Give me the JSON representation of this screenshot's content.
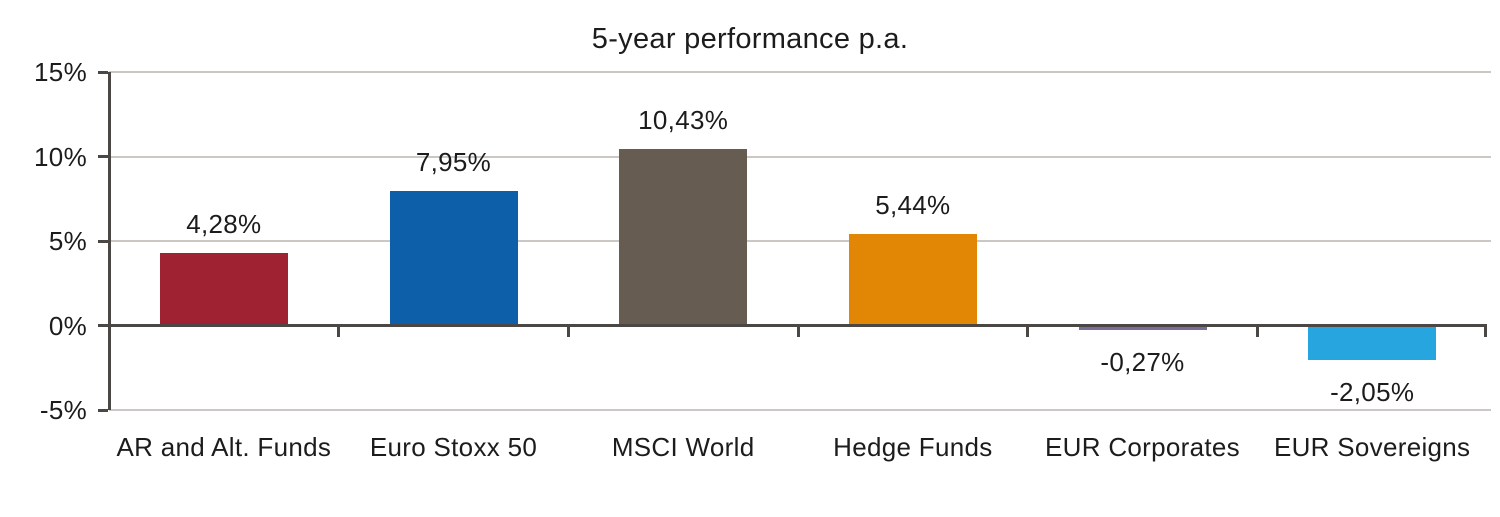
{
  "chart_data": {
    "type": "bar",
    "title": "5-year performance p.a.",
    "categories": [
      "AR and Alt. Funds",
      "Euro Stoxx 50",
      "MSCI World",
      "Hedge Funds",
      "EUR Corporates",
      "EUR Sovereigns"
    ],
    "values": [
      4.28,
      7.95,
      10.43,
      5.44,
      -0.27,
      -2.05
    ],
    "value_labels": [
      "4,28%",
      "7,95%",
      "10,43%",
      "5,44%",
      "-0,27%",
      "-2,05%"
    ],
    "bar_colors": [
      "#9e2231",
      "#0e5fa9",
      "#665c51",
      "#e18705",
      "#7a6e96",
      "#27a5de"
    ],
    "ylim": [
      -5,
      15
    ],
    "yticks": [
      15,
      10,
      5,
      0,
      -5
    ],
    "ytick_labels": [
      "15%",
      "10%",
      "5%",
      "0%",
      "-5%"
    ],
    "grid": true,
    "legend_position": "none",
    "colors": {
      "axis": "#4b4744",
      "gridline": "#cac7c4",
      "text": "#1c1c1c",
      "background": "#ffffff"
    }
  }
}
